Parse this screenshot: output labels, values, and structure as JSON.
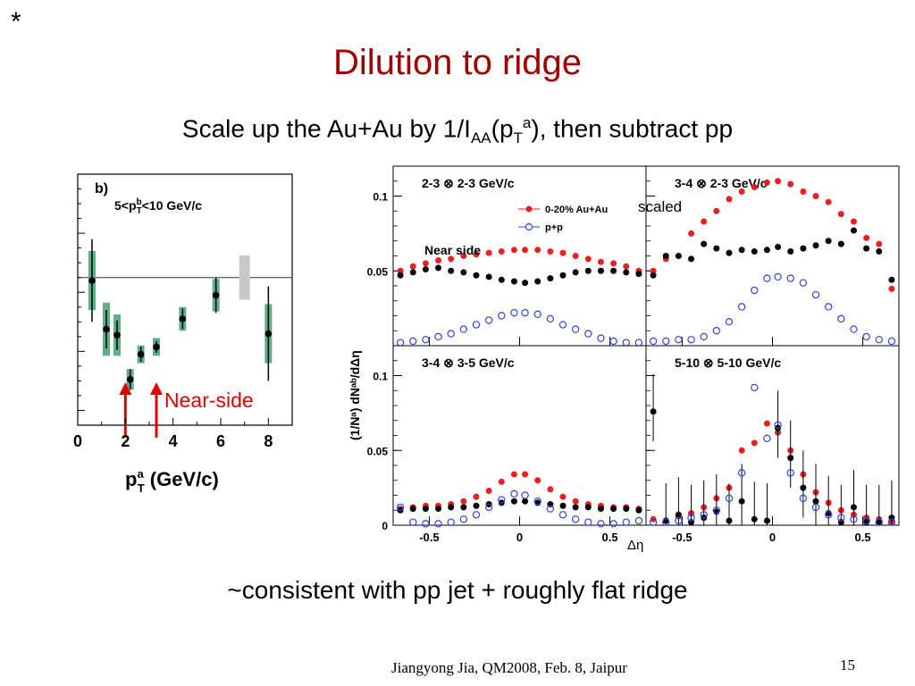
{
  "slide": {
    "star": "*",
    "title": "Dilution to ridge",
    "subtitle": {
      "pre": "Scale up the Au+Au by 1/I",
      "sub1": "AA",
      "mid": "(p",
      "sub2": "T",
      "sup": "a",
      "post": "), then subtract pp"
    },
    "conclusion": "~consistent with pp jet + roughly flat ridge",
    "footer": "Jiangyong Jia, QM2008, Feb. 8, Jaipur",
    "page_number": "15",
    "callout_near_side": "Near-side",
    "callout_scaled": "scaled"
  },
  "chart_data": [
    {
      "type": "scatter",
      "panel_label": "b)",
      "condition": {
        "pre": "5<p",
        "sub": "T",
        "sup": "b",
        "post": "<10 GeV/c"
      },
      "xlabel": {
        "pre": "p",
        "sub": "T",
        "sup": "a",
        "post": " (GeV/c)"
      },
      "xlim": [
        0,
        9
      ],
      "ylim": [
        0,
        1.7
      ],
      "x_ticks": [
        0,
        2,
        4,
        6,
        8
      ],
      "reference_line": 1.0,
      "colors": {
        "points": "#000000",
        "syst_band": "#5fae87",
        "norm_box": "#c8c8c8",
        "arrow": "#e00000"
      },
      "series": [
        {
          "x": [
            0.6,
            1.2,
            1.65,
            2.2,
            2.65,
            3.3,
            4.4,
            5.8,
            8.0
          ],
          "y": [
            0.98,
            0.65,
            0.61,
            0.31,
            0.48,
            0.53,
            0.72,
            0.88,
            0.62
          ],
          "yerr": [
            0.28,
            0.13,
            0.1,
            0.07,
            0.05,
            0.04,
            0.07,
            0.12,
            0.32
          ],
          "syst": [
            0.2,
            0.18,
            0.14,
            0.07,
            0.06,
            0.06,
            0.08,
            0.11,
            0.2
          ]
        }
      ],
      "norm_box": {
        "x": 7.0,
        "y": 1.0,
        "height": 0.3
      },
      "arrows_at_x": [
        2.3,
        3.3
      ]
    },
    {
      "type": "scatter",
      "ylabel": "(1/Nᵃ) dNᵃᵇ/dΔη",
      "xlabel": "Δη",
      "legend": [
        "0-20% Au+Au",
        "p+p"
      ],
      "legend_placement": "top-right of first panel",
      "annotation": "Near side",
      "panels": [
        {
          "title": "2-3 ⊗ 2-3 GeV/c",
          "xlim": [
            -0.7,
            0.7
          ],
          "ylim": [
            0,
            0.12
          ],
          "yticks": [
            0.05,
            0.1
          ],
          "ytick_labels": [
            "0.05",
            "0.1"
          ],
          "x": [
            -0.66,
            -0.59,
            -0.52,
            -0.45,
            -0.38,
            -0.31,
            -0.24,
            -0.17,
            -0.1,
            -0.03,
            0.03,
            0.1,
            0.17,
            0.24,
            0.31,
            0.38,
            0.45,
            0.52,
            0.59,
            0.66
          ],
          "series": [
            {
              "name": "0-20% Au+Au",
              "color": "#e82020",
              "marker": "filled",
              "values": [
                0.05,
                0.053,
                0.055,
                0.057,
                0.058,
                0.06,
                0.061,
                0.062,
                0.063,
                0.064,
                0.064,
                0.064,
                0.063,
                0.062,
                0.06,
                0.058,
                0.056,
                0.055,
                0.053,
                0.05
              ]
            },
            {
              "marker": "filled",
              "color": "#000000",
              "values": [
                0.047,
                0.049,
                0.051,
                0.052,
                0.05,
                0.049,
                0.047,
                0.046,
                0.044,
                0.043,
                0.042,
                0.043,
                0.045,
                0.047,
                0.049,
                0.05,
                0.05,
                0.05,
                0.049,
                0.048
              ]
            },
            {
              "name": "p+p",
              "color": "#3344dd",
              "marker": "open",
              "values": [
                0.002,
                0.003,
                0.004,
                0.006,
                0.008,
                0.011,
                0.014,
                0.017,
                0.02,
                0.022,
                0.022,
                0.021,
                0.018,
                0.014,
                0.011,
                0.008,
                0.005,
                0.003,
                0.002,
                0.002
              ]
            }
          ]
        },
        {
          "title": "3-4 ⊗ 2-3 GeV/c",
          "xlim": [
            -0.7,
            0.7
          ],
          "ylim": [
            0,
            0.12
          ],
          "yticks": [
            0.05,
            0.1
          ],
          "ytick_labels": [
            "",
            ""
          ],
          "x": [
            -0.66,
            -0.59,
            -0.52,
            -0.45,
            -0.38,
            -0.31,
            -0.24,
            -0.17,
            -0.1,
            -0.03,
            0.03,
            0.1,
            0.17,
            0.24,
            0.31,
            0.38,
            0.45,
            0.52,
            0.59,
            0.66
          ],
          "series": [
            {
              "name": "0-20% Au+Au",
              "color": "#e82020",
              "marker": "filled",
              "values": [
                0.05,
                0.058,
                0.06,
                0.075,
                0.083,
                0.09,
                0.098,
                0.103,
                0.106,
                0.109,
                0.11,
                0.108,
                0.103,
                0.1,
                0.096,
                0.088,
                0.083,
                0.072,
                0.068,
                0.038
              ]
            },
            {
              "marker": "filled",
              "color": "#000000",
              "values": [
                0.047,
                0.06,
                0.06,
                0.058,
                0.068,
                0.065,
                0.062,
                0.064,
                0.063,
                0.064,
                0.066,
                0.063,
                0.065,
                0.067,
                0.07,
                0.068,
                0.077,
                0.065,
                0.063,
                0.044
              ]
            },
            {
              "name": "p+p",
              "color": "#3344dd",
              "marker": "open",
              "values": [
                0.003,
                0.003,
                0.004,
                0.004,
                0.006,
                0.01,
                0.016,
                0.026,
                0.037,
                0.045,
                0.046,
                0.045,
                0.042,
                0.034,
                0.026,
                0.018,
                0.011,
                0.006,
                0.004,
                0.003
              ]
            }
          ]
        },
        {
          "title": "3-4 ⊗ 3-5 GeV/c",
          "xlim": [
            -0.7,
            0.7
          ],
          "ylim": [
            0,
            0.12
          ],
          "yticks": [
            0,
            0.05,
            0.1
          ],
          "ytick_labels": [
            "0",
            "0.05",
            "0.1"
          ],
          "x": [
            -0.66,
            -0.59,
            -0.52,
            -0.45,
            -0.38,
            -0.31,
            -0.24,
            -0.17,
            -0.1,
            -0.03,
            0.03,
            0.1,
            0.17,
            0.24,
            0.31,
            0.38,
            0.45,
            0.52,
            0.59,
            0.66
          ],
          "series": [
            {
              "name": "0-20% Au+Au",
              "color": "#e82020",
              "marker": "filled",
              "values": [
                0.011,
                0.012,
                0.013,
                0.013,
                0.014,
                0.016,
                0.019,
                0.023,
                0.029,
                0.034,
                0.034,
                0.03,
                0.024,
                0.019,
                0.016,
                0.014,
                0.013,
                0.012,
                0.012,
                0.011
              ]
            },
            {
              "marker": "filled",
              "color": "#000000",
              "values": [
                0.01,
                0.011,
                0.011,
                0.011,
                0.012,
                0.012,
                0.013,
                0.014,
                0.015,
                0.016,
                0.016,
                0.015,
                0.014,
                0.013,
                0.012,
                0.012,
                0.011,
                0.011,
                0.011,
                0.01
              ]
            },
            {
              "name": "p+p",
              "color": "#3344dd",
              "marker": "open",
              "values": [
                0.012,
                0.002,
                0.001,
                0.001,
                0.002,
                0.004,
                0.007,
                0.012,
                0.017,
                0.021,
                0.02,
                0.016,
                0.011,
                0.007,
                0.004,
                0.002,
                0.001,
                0.001,
                0.002,
                0.003
              ]
            }
          ]
        },
        {
          "title": "5-10 ⊗ 5-10 GeV/c",
          "xlim": [
            -0.7,
            0.7
          ],
          "ylim": [
            0,
            0.12
          ],
          "yticks": [
            0.05,
            0.1
          ],
          "ytick_labels": [
            "",
            ""
          ],
          "x": [
            -0.66,
            -0.59,
            -0.52,
            -0.45,
            -0.38,
            -0.31,
            -0.24,
            -0.17,
            -0.1,
            -0.03,
            0.03,
            0.1,
            0.17,
            0.24,
            0.31,
            0.38,
            0.45,
            0.52,
            0.59,
            0.66
          ],
          "series": [
            {
              "name": "0-20% Au+Au",
              "color": "#e82020",
              "marker": "filled",
              "values": [
                0.004,
                0.003,
                0.006,
                0.008,
                0.012,
                0.018,
                0.025,
                0.05,
                0.055,
                0.068,
                0.062,
                0.05,
                0.034,
                0.022,
                0.015,
                0.01,
                0.007,
                0.005,
                0.004,
                0.002
              ]
            },
            {
              "marker": "filled",
              "color": "#000000",
              "values": [
                0.076,
                0.003,
                0.007,
                0.002,
                0.005,
                0.009,
                0.003,
                0.016,
                0.004,
                0.003,
                0.065,
                0.045,
                0.025,
                0.016,
                0.008,
                0.002,
                0.012,
                0.002,
                0.002,
                0.005
              ]
            },
            {
              "name": "p+p",
              "color": "#3344dd",
              "marker": "open",
              "values": [
                0.002,
                0.002,
                0.003,
                0.005,
                0.007,
                0.01,
                0.018,
                0.035,
                0.092,
                0.058,
                0.067,
                0.035,
                0.018,
                0.012,
                0.007,
                0.005,
                0.004,
                0.003,
                0.002,
                0.002
              ]
            }
          ]
        }
      ]
    }
  ]
}
